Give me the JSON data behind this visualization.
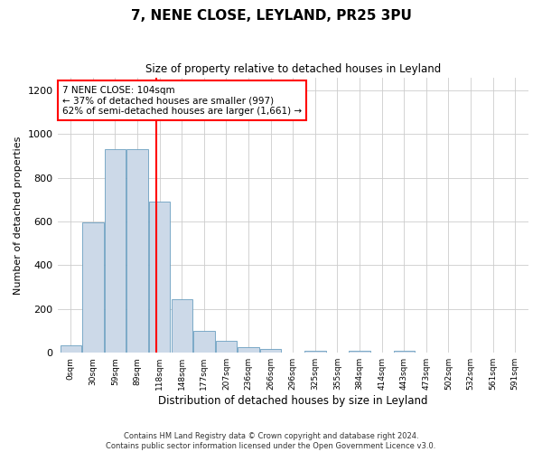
{
  "title": "7, NENE CLOSE, LEYLAND, PR25 3PU",
  "subtitle": "Size of property relative to detached houses in Leyland",
  "xlabel": "Distribution of detached houses by size in Leyland",
  "ylabel": "Number of detached properties",
  "bar_labels": [
    "0sqm",
    "30sqm",
    "59sqm",
    "89sqm",
    "118sqm",
    "148sqm",
    "177sqm",
    "207sqm",
    "236sqm",
    "266sqm",
    "296sqm",
    "325sqm",
    "355sqm",
    "384sqm",
    "414sqm",
    "443sqm",
    "473sqm",
    "502sqm",
    "532sqm",
    "561sqm",
    "591sqm"
  ],
  "bar_values": [
    35,
    595,
    930,
    930,
    690,
    245,
    100,
    55,
    25,
    18,
    0,
    10,
    0,
    10,
    0,
    10,
    0,
    0,
    0,
    0,
    0
  ],
  "bar_color": "#ccd9e8",
  "bar_edge_color": "#6a9fc0",
  "property_line_x": 3.85,
  "annotation_text": "7 NENE CLOSE: 104sqm\n← 37% of detached houses are smaller (997)\n62% of semi-detached houses are larger (1,661) →",
  "ylim": [
    0,
    1260
  ],
  "yticks": [
    0,
    200,
    400,
    600,
    800,
    1000,
    1200
  ],
  "footer_line1": "Contains HM Land Registry data © Crown copyright and database right 2024.",
  "footer_line2": "Contains public sector information licensed under the Open Government Licence v3.0."
}
